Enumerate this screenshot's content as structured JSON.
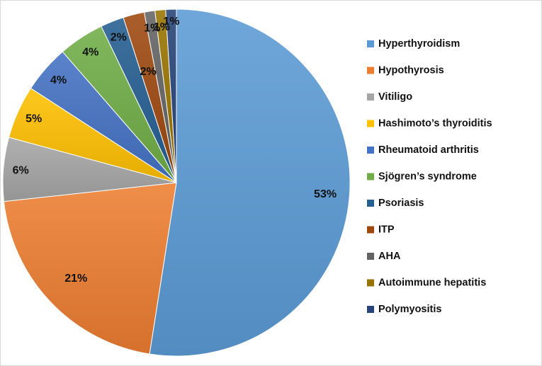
{
  "chart_data": {
    "type": "pie",
    "title": "",
    "legend_position": "right",
    "slices": [
      {
        "name": "Hyperthyroidism",
        "value": 53,
        "label": "53%",
        "color": "#5b9bd5"
      },
      {
        "name": "Hypothyrosis",
        "value": 21,
        "label": "21%",
        "color": "#ed7d31"
      },
      {
        "name": "Vitiligo",
        "value": 6,
        "label": "6%",
        "color": "#a5a5a5"
      },
      {
        "name": "Hashimoto’s thyroiditis",
        "value": 5,
        "label": "5%",
        "color": "#ffc000"
      },
      {
        "name": "Rheumatoid arthritis",
        "value": 4.5,
        "label": "4%",
        "color": "#4472c4"
      },
      {
        "name": "Sjögren’s syndrome",
        "value": 4.3,
        "label": "4%",
        "color": "#70ad47"
      },
      {
        "name": "Psoriasis",
        "value": 2.2,
        "label": "2%",
        "color": "#255e91"
      },
      {
        "name": "ITP",
        "value": 2.0,
        "label": "2%",
        "color": "#9e480e"
      },
      {
        "name": "AHA",
        "value": 1.0,
        "label": "1%",
        "color": "#636363"
      },
      {
        "name": "Autoimmune hepatitis",
        "value": 1.0,
        "label": "1%",
        "color": "#997300"
      },
      {
        "name": "Polymyositis",
        "value": 1.0,
        "label": "1%",
        "color": "#264478"
      }
    ]
  }
}
